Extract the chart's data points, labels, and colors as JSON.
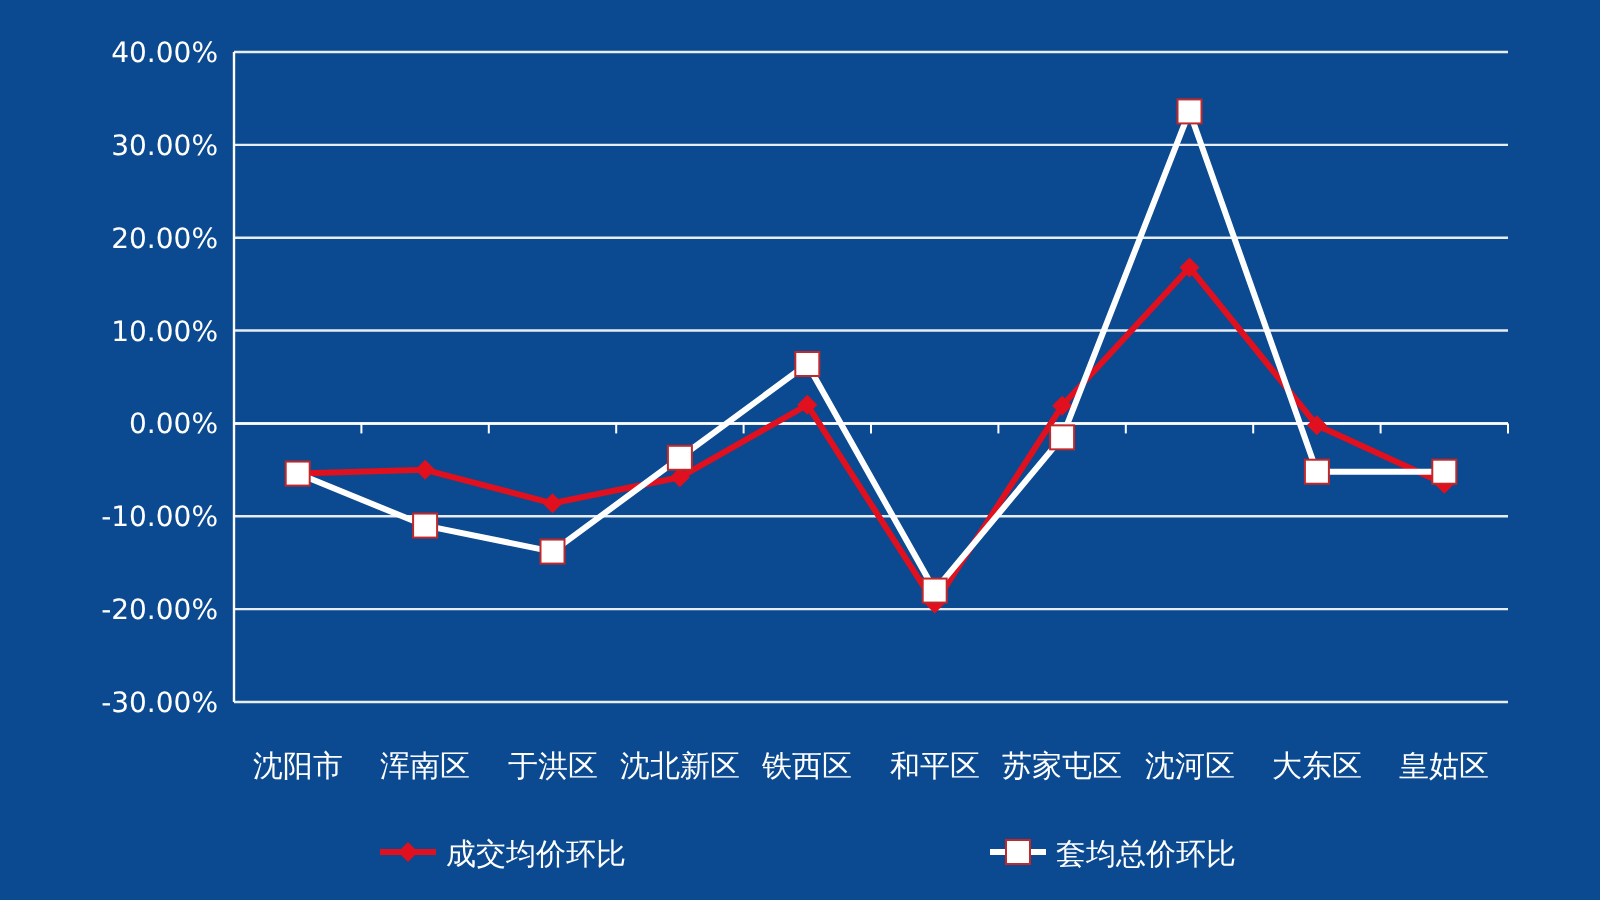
{
  "chart_data": {
    "type": "line",
    "categories": [
      "沈阳市",
      "浑南区",
      "于洪区",
      "沈北新区",
      "铁西区",
      "和平区",
      "苏家屯区",
      "沈河区",
      "大东区",
      "皇姑区"
    ],
    "series": [
      {
        "name": "成交均价环比",
        "color": "#e0101e",
        "marker": "diamond",
        "values": [
          -5.4,
          -5.0,
          -8.6,
          -5.8,
          2.0,
          -19.4,
          1.9,
          16.8,
          -0.2,
          -6.5
        ]
      },
      {
        "name": "套均总价环比",
        "color": "#ffffff",
        "marker": "square",
        "values": [
          -5.4,
          -11.0,
          -13.8,
          -3.7,
          6.4,
          -18.0,
          -1.5,
          33.6,
          -5.2,
          -5.2
        ]
      }
    ],
    "ylim": [
      -30,
      40
    ],
    "yticks": [
      {
        "value": -30,
        "label": "-30.00%"
      },
      {
        "value": -20,
        "label": "-20.00%"
      },
      {
        "value": -10,
        "label": "-10.00%"
      },
      {
        "value": 0,
        "label": "0.00%"
      },
      {
        "value": 10,
        "label": "10.00%"
      },
      {
        "value": 20,
        "label": "20.00%"
      },
      {
        "value": 30,
        "label": "30.00%"
      },
      {
        "value": 40,
        "label": "40.00%"
      }
    ],
    "grid": "y",
    "legend": "bottom"
  }
}
